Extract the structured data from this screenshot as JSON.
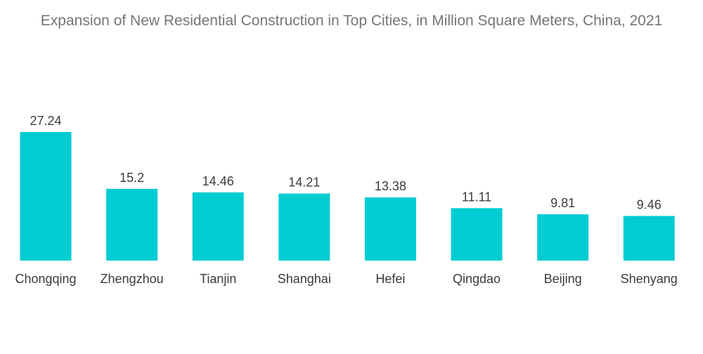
{
  "chart_data": {
    "type": "bar",
    "title": "Expansion of New Residential Construction in Top Cities, in Million Square Meters, China, 2021",
    "categories": [
      "Chongqing",
      "Zhengzhou",
      "Tianjin",
      "Shanghai",
      "Hefei",
      "Qingdao",
      "Beijing",
      "Shenyang"
    ],
    "values": [
      27.24,
      15.2,
      14.46,
      14.21,
      13.38,
      11.11,
      9.81,
      9.46
    ],
    "value_labels": [
      "27.24",
      "15.2",
      "14.46",
      "14.21",
      "13.38",
      "11.11",
      "9.81",
      "9.46"
    ],
    "xlabel": "",
    "ylabel": "",
    "ylim": [
      0,
      27.24
    ],
    "grid": false,
    "legend": "none",
    "bar_color": "#00CCD1"
  }
}
